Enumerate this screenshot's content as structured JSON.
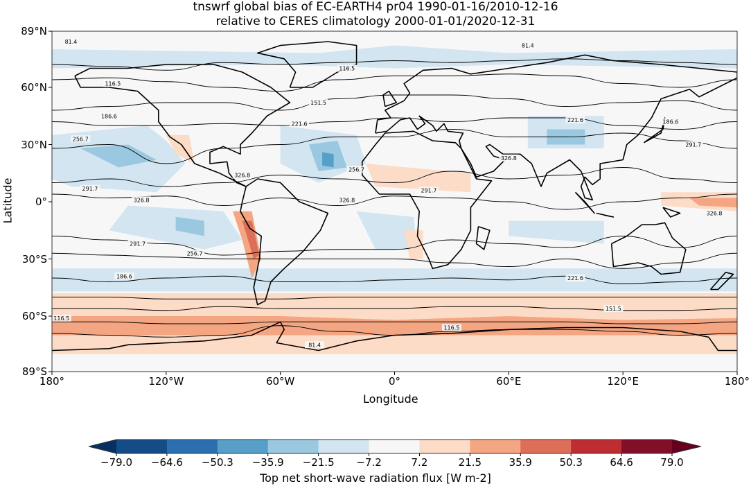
{
  "title": {
    "line1": "tnswrf global bias of EC-EARTH4 pr04 1990-01-16/2010-12-16",
    "line2": "relative to CERES climatology 2000-01-01/2020-12-31"
  },
  "chart_data": {
    "type": "heatmap",
    "projection": "PlateCarree",
    "xlabel": "Longitude",
    "ylabel": "Latitude",
    "xlim": [
      -180,
      180
    ],
    "ylim": [
      -89,
      89
    ],
    "xticks": [
      "180°",
      "120°W",
      "60°W",
      "0°",
      "60°E",
      "120°E",
      "180°"
    ],
    "yticks": [
      "89°N",
      "60°N",
      "30°N",
      "0°",
      "30°S",
      "60°S",
      "89°S"
    ],
    "contour_levels": [
      "81.4",
      "116.5",
      "151.5",
      "186.6",
      "221.6",
      "256.7",
      "291.7",
      "326.8"
    ],
    "colorbar": {
      "label": "Top net short-wave radiation flux [W m-2]",
      "ticks": [
        "−79.0",
        "−64.6",
        "−50.3",
        "−35.9",
        "−21.5",
        "−7.2",
        "7.2",
        "21.5",
        "35.9",
        "50.3",
        "64.6",
        "79.0"
      ],
      "colors": [
        "#053061",
        "#134c87",
        "#2b6fb0",
        "#569fc9",
        "#9ac8e0",
        "#d2e5f0",
        "#f7f7f7",
        "#fcdbc7",
        "#f4a683",
        "#dd6f58",
        "#bd2d32",
        "#810f27",
        "#67001f"
      ],
      "extend": "both"
    }
  }
}
